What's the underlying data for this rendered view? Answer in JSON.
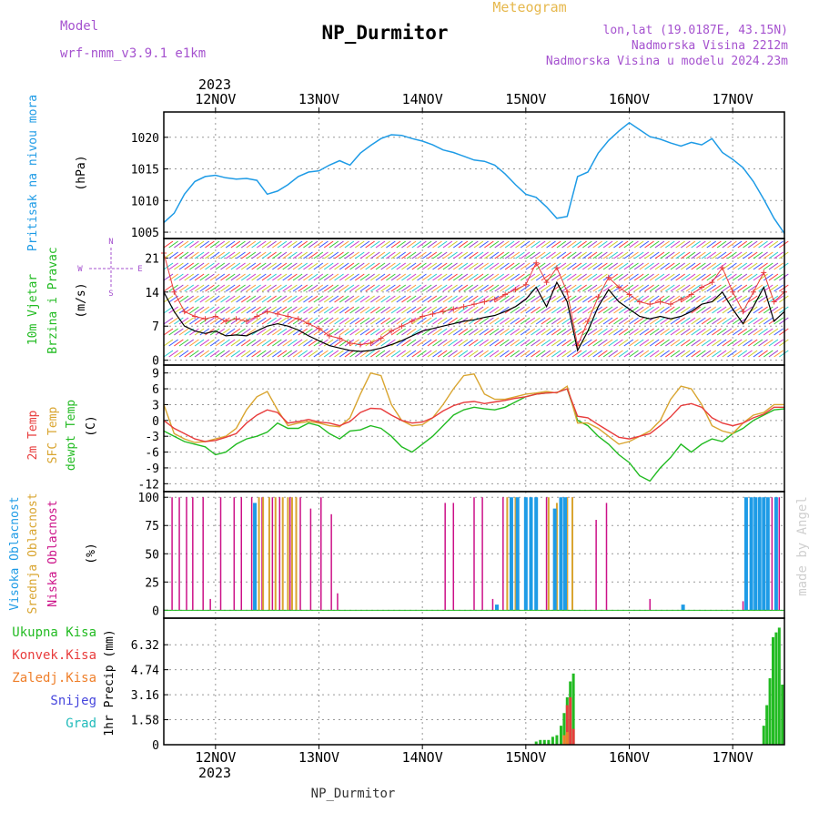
{
  "header": {
    "title": "Meteogram",
    "station": "NP_Durmitor",
    "model_label": "Model",
    "model_name": "wrf-nmm_v3.9.1 e1km",
    "coords": "lon,lat (19.0187E, 43.15N)",
    "elevation": "Nadmorska Visina 2212m",
    "elevation_model": "Nadmorska Visina u modelu 2024.23m",
    "credit": "made by Angel",
    "footer": "NP_Durmitor"
  },
  "colors": {
    "pressure": "#1e9be6",
    "temp2m": "#e83c3c",
    "sfc": "#d9a530",
    "dew": "#22bb22",
    "high_cloud": "#1e9be6",
    "mid_cloud": "#d9a530",
    "low_cloud": "#cc1188",
    "total_precip": "#22bb22",
    "conv_precip": "#e83c3c",
    "frz_precip": "#ef7f2a",
    "snow": "#4646dd",
    "grad": "#22bbbb",
    "wind_speed": "#000000",
    "wind_gust": "#e83c3c",
    "meta_purple": "#a552cf",
    "meteogram_orange": "#e6b84d"
  },
  "time_axis": {
    "year_top": "2023",
    "year_bottom": "2023",
    "day_labels": [
      "12NOV",
      "13NOV",
      "14NOV",
      "15NOV",
      "16NOV",
      "17NOV"
    ],
    "days_span": [
      11.5,
      17.5
    ]
  },
  "chart_data": [
    {
      "type": "line",
      "name": "pressure",
      "labels": [
        "Pritisak na nivou mora",
        "(hPa)"
      ],
      "ylim": [
        1004,
        1024
      ],
      "yticks": [
        "1005",
        "1010",
        "1015",
        "1020"
      ],
      "x": [
        11.5,
        11.6,
        11.7,
        11.8,
        11.9,
        12.0,
        12.1,
        12.2,
        12.3,
        12.4,
        12.5,
        12.6,
        12.7,
        12.8,
        12.9,
        13.0,
        13.1,
        13.2,
        13.3,
        13.4,
        13.5,
        13.6,
        13.7,
        13.8,
        13.9,
        14.0,
        14.1,
        14.2,
        14.3,
        14.4,
        14.5,
        14.6,
        14.7,
        14.8,
        14.9,
        15.0,
        15.1,
        15.2,
        15.3,
        15.4,
        15.5,
        15.6,
        15.7,
        15.8,
        15.9,
        16.0,
        16.1,
        16.2,
        16.3,
        16.4,
        16.5,
        16.6,
        16.7,
        16.8,
        16.9,
        17.0,
        17.1,
        17.2,
        17.3,
        17.4,
        17.5
      ],
      "values": [
        1006.5,
        1008,
        1011,
        1013,
        1013.8,
        1014,
        1013.6,
        1013.4,
        1013.5,
        1013.2,
        1011,
        1011.5,
        1012.5,
        1013.8,
        1014.5,
        1014.7,
        1015.6,
        1016.3,
        1015.6,
        1017.5,
        1018.7,
        1019.8,
        1020.4,
        1020.3,
        1019.8,
        1019.4,
        1018.8,
        1018.0,
        1017.6,
        1017.0,
        1016.4,
        1016.2,
        1015.6,
        1014.2,
        1012.5,
        1011.0,
        1010.5,
        1009.0,
        1007.2,
        1007.5,
        1013.8,
        1014.5,
        1017.5,
        1019.5,
        1021.0,
        1022.3,
        1021.2,
        1020.1,
        1019.7,
        1019.1,
        1018.6,
        1019.2,
        1018.8,
        1019.8,
        1017.6,
        1016.5,
        1015.2,
        1013.0,
        1010.2,
        1007.2,
        1004.8
      ]
    },
    {
      "type": "line",
      "name": "wind",
      "labels": [
        "10m Vjetar",
        "Brzina i Pravac",
        "(m/s)"
      ],
      "compass": [
        "N",
        "S",
        "W",
        "E"
      ],
      "ylim": [
        -1,
        25
      ],
      "yticks": [
        "0",
        "7",
        "14",
        "21"
      ],
      "x": [
        11.5,
        11.6,
        11.7,
        11.8,
        11.9,
        12.0,
        12.1,
        12.2,
        12.3,
        12.4,
        12.5,
        12.6,
        12.7,
        12.8,
        12.9,
        13.0,
        13.1,
        13.2,
        13.3,
        13.4,
        13.5,
        13.6,
        13.7,
        13.8,
        13.9,
        14.0,
        14.1,
        14.2,
        14.3,
        14.4,
        14.5,
        14.6,
        14.7,
        14.8,
        14.9,
        15.0,
        15.1,
        15.2,
        15.3,
        15.4,
        15.5,
        15.6,
        15.7,
        15.8,
        15.9,
        16.0,
        16.1,
        16.2,
        16.3,
        16.4,
        16.5,
        16.6,
        16.7,
        16.8,
        16.9,
        17.0,
        17.1,
        17.2,
        17.3,
        17.4,
        17.5
      ],
      "series": [
        {
          "name": "speed",
          "values": [
            14,
            10,
            7,
            6,
            5.5,
            6,
            5,
            5.2,
            5,
            6,
            7,
            7.5,
            7,
            6.2,
            5,
            4,
            3,
            2.5,
            2,
            1.8,
            2,
            2.5,
            3.2,
            4,
            5,
            6,
            6.5,
            7,
            7.5,
            8,
            8.3,
            8.8,
            9.2,
            10,
            11,
            12.5,
            15,
            11,
            16,
            12,
            2,
            6,
            11,
            14.5,
            12,
            10.5,
            9,
            8.5,
            9,
            8.5,
            9,
            10,
            11.5,
            12,
            14,
            10.5,
            7.5,
            11,
            15,
            8,
            10
          ]
        },
        {
          "name": "gust",
          "values": [
            22,
            14,
            10,
            9,
            8.5,
            9,
            8,
            8.5,
            8,
            9,
            10,
            9.5,
            9,
            8.5,
            7.5,
            6.5,
            5,
            4.5,
            3.5,
            3.2,
            3.5,
            4.5,
            6,
            7,
            8,
            9,
            9.5,
            10,
            10.5,
            11,
            11.5,
            12,
            12.5,
            13.5,
            14.5,
            15.5,
            20,
            16,
            19,
            14,
            3,
            8,
            13,
            17,
            15,
            13.5,
            12,
            11.5,
            12,
            11.5,
            12.5,
            13.5,
            15,
            16,
            19,
            14,
            10,
            14,
            18,
            12,
            14
          ]
        }
      ]
    },
    {
      "type": "line",
      "name": "temperature",
      "labels": [
        "2m Temp",
        "SFC Temp",
        "dewpt Temp",
        "(C)"
      ],
      "ylim": [
        -13.5,
        10.5
      ],
      "yticks": [
        "-12",
        "-9",
        "-6",
        "-3",
        "0",
        "3",
        "6",
        "9"
      ],
      "x": [
        11.5,
        11.6,
        11.7,
        11.8,
        11.9,
        12.0,
        12.1,
        12.2,
        12.3,
        12.4,
        12.5,
        12.6,
        12.7,
        12.8,
        12.9,
        13.0,
        13.1,
        13.2,
        13.3,
        13.4,
        13.5,
        13.6,
        13.7,
        13.8,
        13.9,
        14.0,
        14.1,
        14.2,
        14.3,
        14.4,
        14.5,
        14.6,
        14.7,
        14.8,
        14.9,
        15.0,
        15.1,
        15.2,
        15.3,
        15.4,
        15.5,
        15.6,
        15.7,
        15.8,
        15.9,
        16.0,
        16.1,
        16.2,
        16.3,
        16.4,
        16.5,
        16.6,
        16.7,
        16.8,
        16.9,
        17.0,
        17.1,
        17.2,
        17.3,
        17.4,
        17.5
      ],
      "series": [
        {
          "name": "2m",
          "values": [
            0,
            -1.5,
            -2.5,
            -3.5,
            -4,
            -3.8,
            -3.2,
            -2.5,
            -0.5,
            1,
            2,
            1.5,
            -0.5,
            -0.2,
            0.2,
            -0.3,
            -0.5,
            -1,
            -0.2,
            1.5,
            2.3,
            2.2,
            1,
            0,
            -0.5,
            -0.3,
            0.5,
            1.8,
            2.8,
            3.4,
            3.6,
            3.2,
            3.5,
            3.8,
            4.2,
            4.5,
            5,
            5.2,
            5.3,
            6,
            0.8,
            0.5,
            -0.8,
            -2,
            -3.2,
            -3.5,
            -3,
            -2.5,
            -1,
            0.7,
            2.8,
            3.2,
            2.5,
            0.5,
            -0.5,
            -1,
            -0.5,
            0.5,
            1.2,
            2.5,
            2.5
          ]
        },
        {
          "name": "SFC",
          "values": [
            3,
            -2.5,
            -3.5,
            -4.2,
            -4,
            -3.5,
            -3,
            -1.5,
            2,
            4.5,
            5.5,
            2,
            -1,
            -0.5,
            -0.2,
            -0.5,
            -1,
            -1.2,
            0.5,
            5,
            9,
            8.5,
            3,
            0,
            -1,
            -0.8,
            0.5,
            3,
            6,
            8.5,
            8.8,
            5,
            4,
            4,
            4.5,
            5,
            5.2,
            5.5,
            5.2,
            6.5,
            -0.5,
            -0.5,
            -1.5,
            -3,
            -4.5,
            -4,
            -3,
            -2,
            0,
            4,
            6.5,
            6,
            3,
            -1,
            -2,
            -2.5,
            -0.5,
            1,
            1.5,
            3,
            3
          ]
        },
        {
          "name": "dewpt",
          "values": [
            -2,
            -3,
            -4,
            -4.5,
            -5,
            -6.5,
            -6,
            -4.5,
            -3.5,
            -3,
            -2.2,
            -0.5,
            -1.5,
            -1.5,
            -0.5,
            -1,
            -2.5,
            -3.5,
            -2,
            -1.8,
            -1,
            -1.5,
            -3,
            -5,
            -6,
            -4.5,
            -3,
            -1,
            1,
            2,
            2.5,
            2.2,
            2,
            2.5,
            3.5,
            4.5,
            5,
            5.2,
            5.3,
            6,
            0,
            -1,
            -3,
            -4.5,
            -6.5,
            -8,
            -10.5,
            -11.5,
            -9,
            -7,
            -4.5,
            -6,
            -4.5,
            -3.5,
            -4,
            -2.5,
            -1.5,
            0,
            1,
            2,
            2.2
          ]
        }
      ]
    },
    {
      "type": "bar",
      "name": "cloud_cover",
      "labels": [
        "Visoka Oblacnost",
        "Srednja Oblacnost",
        "Niska Oblacnost",
        "(%)"
      ],
      "ylim": [
        -7,
        105
      ],
      "yticks": [
        "0",
        "25",
        "50",
        "75",
        "100"
      ],
      "series": [
        {
          "name": "low",
          "x": [
            11.58,
            11.65,
            11.72,
            11.78,
            11.88,
            11.95,
            12.05,
            12.18,
            12.25,
            12.35,
            12.45,
            12.55,
            12.62,
            12.72,
            12.82,
            12.92,
            13.02,
            13.12,
            13.18,
            14.22,
            14.3,
            14.5,
            14.58,
            14.68,
            14.78,
            15.2,
            15.4,
            15.45,
            15.68,
            15.78,
            16.2,
            17.1,
            17.38,
            17.45
          ],
          "values": [
            100,
            100,
            100,
            100,
            100,
            10,
            100,
            100,
            100,
            100,
            100,
            100,
            100,
            100,
            100,
            90,
            100,
            85,
            15,
            95,
            95,
            100,
            100,
            10,
            100,
            100,
            100,
            100,
            80,
            95,
            10,
            8,
            100,
            100
          ]
        },
        {
          "name": "mid",
          "x": [
            12.42,
            12.46,
            12.52,
            12.58,
            12.65,
            12.7,
            12.74,
            12.78,
            14.82,
            14.9,
            15.22,
            15.3,
            15.4,
            15.45
          ],
          "values": [
            100,
            100,
            100,
            100,
            100,
            100,
            100,
            100,
            100,
            100,
            100,
            95,
            100,
            100
          ]
        },
        {
          "name": "high",
          "x": [
            12.38,
            14.72,
            14.86,
            14.92,
            15.0,
            15.05,
            15.1,
            15.28,
            15.34,
            15.38,
            16.52,
            17.13,
            17.18,
            17.22,
            17.26,
            17.3,
            17.34,
            17.42
          ],
          "values": [
            95,
            5,
            100,
            100,
            100,
            100,
            100,
            90,
            100,
            100,
            5,
            100,
            100,
            100,
            100,
            100,
            100,
            100
          ]
        }
      ]
    },
    {
      "type": "bar",
      "name": "precipitation",
      "labels": [
        "Ukupna Kisa",
        "Konvek.Kisa",
        "Zaledj.Kisa",
        "Snijeg",
        "Grad",
        "1hr Precip (mm)"
      ],
      "ylim": [
        0,
        8.0
      ],
      "yticks": [
        "0",
        "1.58",
        "3.16",
        "4.74",
        "6.32"
      ],
      "series": [
        {
          "name": "total",
          "x": [
            15.1,
            15.14,
            15.18,
            15.22,
            15.26,
            15.3,
            15.34,
            15.37,
            15.4,
            15.43,
            15.46,
            17.3,
            17.33,
            17.36,
            17.39,
            17.42,
            17.45,
            17.48
          ],
          "values": [
            0.2,
            0.3,
            0.3,
            0.3,
            0.5,
            0.6,
            1.2,
            2.0,
            3.0,
            4.0,
            4.5,
            1.2,
            2.5,
            4.2,
            6.8,
            7.1,
            7.4,
            3.8
          ]
        },
        {
          "name": "conv",
          "x": [
            15.4,
            15.43,
            15.46
          ],
          "values": [
            2.5,
            3.0,
            1.0
          ]
        },
        {
          "name": "frz",
          "x": [
            15.37,
            15.4
          ],
          "values": [
            0.6,
            0.8
          ]
        }
      ]
    }
  ]
}
